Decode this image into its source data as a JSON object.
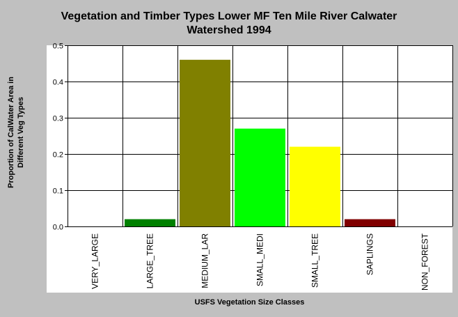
{
  "chart_data": {
    "type": "bar",
    "title": [
      "Vegetation and Timber Types Lower MF Ten Mile River Calwater",
      "Watershed 1994"
    ],
    "xlabel": "USFS Vegetation Size Classes",
    "ylabel": [
      "Proportion of CalWater Area in",
      "Different Veg Types"
    ],
    "categories": [
      "VERY_LARGE",
      "LARGE_TREE",
      "MEDIUM_LAR",
      "SMALL_MEDI",
      "SMALL_TREE",
      "SAPLINGS",
      "NON_FOREST"
    ],
    "values": [
      0.0,
      0.02,
      0.46,
      0.27,
      0.22,
      0.02,
      0.0
    ],
    "colors": [
      "#008000",
      "#008000",
      "#808000",
      "#00ff00",
      "#ffff00",
      "#800000",
      "#808080"
    ],
    "ylim": [
      0,
      0.5
    ],
    "yticks": [
      "0.0",
      "0.1",
      "0.2",
      "0.3",
      "0.4",
      "0.5"
    ],
    "grid": true,
    "legend": "none"
  }
}
